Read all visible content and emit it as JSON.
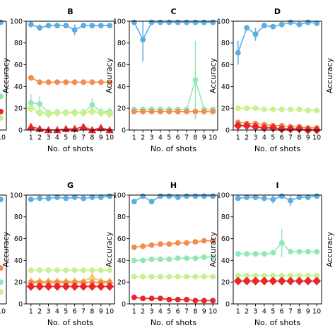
{
  "chart_data": [
    {
      "type": "line",
      "panel": "B",
      "xlabel": "No. of shots",
      "ylabel": "Accuracy",
      "ylim": [
        0,
        100
      ],
      "yticks": [
        0,
        20,
        40,
        60,
        80,
        100
      ],
      "x": [
        1,
        2,
        3,
        4,
        5,
        6,
        7,
        8,
        9,
        10
      ],
      "xtick_labels": [
        "1",
        "2",
        "3",
        "4",
        "5",
        "6",
        "7",
        "8",
        "9",
        "10"
      ],
      "series": [
        {
          "color": "#5dade2",
          "marker": "circle",
          "values": [
            97,
            94,
            96,
            96,
            96,
            92,
            96,
            96,
            96,
            96
          ],
          "error": [
            0,
            3,
            0,
            0,
            0,
            5,
            0,
            0,
            0,
            0
          ]
        },
        {
          "color": "#f28c4f",
          "marker": "circle",
          "values": [
            48,
            44,
            44,
            44,
            44,
            44,
            44,
            44,
            44,
            44
          ],
          "error": [
            2,
            0,
            0,
            0,
            0,
            0,
            0,
            0,
            0,
            0
          ]
        },
        {
          "color": "#92e8b4",
          "marker": "circle",
          "values": [
            25,
            24,
            16,
            16,
            16,
            16,
            16,
            23,
            17,
            17
          ],
          "error": [
            8,
            7,
            3,
            0,
            0,
            0,
            0,
            6,
            4,
            4
          ]
        },
        {
          "color": "#c8f08f",
          "marker": "diamond",
          "values": [
            20,
            16,
            15,
            16,
            16,
            16,
            16,
            17,
            16,
            15
          ],
          "error": [
            0,
            0,
            0,
            0,
            0,
            0,
            0,
            0,
            0,
            0
          ]
        },
        {
          "color": "#e8262b",
          "marker": "triangle",
          "values": [
            3,
            1,
            0,
            0,
            1,
            1,
            3,
            0,
            2,
            0
          ],
          "error": [
            0,
            0,
            0,
            0,
            0,
            0,
            0,
            0,
            0,
            0
          ]
        }
      ]
    },
    {
      "type": "line",
      "panel": "C",
      "xlabel": "No. of shots",
      "ylabel": "Accuracy",
      "ylim": [
        0,
        100
      ],
      "yticks": [
        0,
        20,
        40,
        60,
        80,
        100
      ],
      "x": [
        1,
        2,
        3,
        4,
        5,
        6,
        7,
        8,
        9,
        10
      ],
      "xtick_labels": [
        "1",
        "2",
        "3",
        "4",
        "5",
        "6",
        "7",
        "8",
        "9",
        "10"
      ],
      "series": [
        {
          "color": "#5dade2",
          "marker": "circle",
          "values": [
            99,
            83,
            99,
            99,
            99,
            99,
            99,
            99,
            99,
            99
          ],
          "error": [
            0,
            20,
            0,
            0,
            0,
            0,
            0,
            0,
            0,
            0
          ]
        },
        {
          "color": "#92e8b4",
          "marker": "circle",
          "values": [
            19,
            19,
            19,
            19,
            19,
            19,
            19,
            46,
            19,
            19
          ],
          "error": [
            0,
            0,
            0,
            0,
            0,
            0,
            0,
            36,
            0,
            0
          ]
        },
        {
          "color": "#f28c4f",
          "marker": "circle",
          "values": [
            17,
            17,
            17,
            17,
            17,
            17,
            17,
            17,
            17,
            17
          ],
          "error": [
            0,
            0,
            0,
            0,
            0,
            0,
            0,
            0,
            0,
            0
          ]
        }
      ]
    },
    {
      "type": "line",
      "panel": "D",
      "xlabel": "No. of shots",
      "ylabel": "Accuracy",
      "ylim": [
        0,
        100
      ],
      "yticks": [
        0,
        20,
        40,
        60,
        80,
        100
      ],
      "x": [
        1,
        2,
        3,
        4,
        5,
        6,
        7,
        8,
        9,
        10
      ],
      "xtick_labels": [
        "1",
        "2",
        "3",
        "4",
        "5",
        "6",
        "7",
        "8",
        "9",
        "10"
      ],
      "series": [
        {
          "color": "#5dade2",
          "marker": "circle",
          "values": [
            71,
            94,
            88,
            96,
            95,
            97,
            99,
            97,
            99,
            98
          ],
          "error": [
            11,
            0,
            6,
            0,
            0,
            0,
            0,
            0,
            0,
            0
          ]
        },
        {
          "color": "#c8f08f",
          "marker": "circle",
          "values": [
            20,
            20,
            20,
            19,
            19,
            19,
            19,
            19,
            18,
            18
          ],
          "error": [
            0,
            0,
            0,
            0,
            0,
            0,
            0,
            0,
            0,
            0
          ]
        },
        {
          "color": "#f28c4f",
          "marker": "circle",
          "values": [
            7,
            6,
            6,
            5,
            4,
            4,
            3,
            3,
            2,
            2
          ],
          "error": [
            0,
            0,
            0,
            0,
            0,
            0,
            0,
            0,
            0,
            0
          ]
        },
        {
          "color": "#e8262b",
          "marker": "diamond",
          "values": [
            4,
            4,
            3,
            2,
            2,
            1,
            1,
            1,
            0,
            0
          ],
          "error": [
            0,
            0,
            0,
            0,
            0,
            0,
            0,
            0,
            0,
            0
          ]
        }
      ]
    },
    {
      "type": "line",
      "panel": "G",
      "xlabel": "No. of shots",
      "ylabel": "Accuracy",
      "ylim": [
        0,
        100
      ],
      "yticks": [
        0,
        20,
        40,
        60,
        80,
        100
      ],
      "x": [
        1,
        2,
        3,
        4,
        5,
        6,
        7,
        8,
        9,
        10
      ],
      "xtick_labels": [
        "1",
        "2",
        "3",
        "4",
        "5",
        "6",
        "7",
        "8",
        "9",
        "10"
      ],
      "series": [
        {
          "color": "#5dade2",
          "marker": "circle",
          "values": [
            96,
            97,
            97,
            98,
            97,
            98,
            97,
            98,
            98,
            99
          ],
          "error": [
            0,
            0,
            0,
            0,
            0,
            0,
            0,
            0,
            0,
            0
          ]
        },
        {
          "color": "#c8f08f",
          "marker": "circle",
          "values": [
            31,
            31,
            31,
            31,
            31,
            31,
            31,
            31,
            31,
            31
          ],
          "error": [
            0,
            0,
            0,
            0,
            0,
            0,
            0,
            0,
            0,
            0
          ]
        },
        {
          "color": "#f0d070",
          "marker": "triangle",
          "values": [
            21,
            21,
            21,
            21,
            21,
            21,
            21,
            25,
            21,
            21
          ],
          "error": [
            0,
            0,
            0,
            0,
            0,
            0,
            0,
            0,
            0,
            0
          ]
        },
        {
          "color": "#f28c4f",
          "marker": "circle",
          "values": [
            20,
            20,
            20,
            20,
            20,
            20,
            20,
            20,
            20,
            20
          ],
          "error": [
            0,
            0,
            0,
            0,
            0,
            0,
            0,
            0,
            0,
            0
          ]
        },
        {
          "color": "#e8262b",
          "marker": "diamond",
          "values": [
            16,
            16,
            16,
            16,
            16,
            16,
            16,
            16,
            16,
            16
          ],
          "error": [
            0,
            0,
            0,
            0,
            0,
            0,
            0,
            0,
            0,
            0
          ]
        }
      ]
    },
    {
      "type": "line",
      "panel": "H",
      "xlabel": "No. of shots",
      "ylabel": "Accuracy",
      "ylim": [
        0,
        100
      ],
      "yticks": [
        0,
        20,
        40,
        60,
        80,
        100
      ],
      "x": [
        1,
        2,
        3,
        4,
        5,
        6,
        7,
        8,
        9,
        10
      ],
      "xtick_labels": [
        "1",
        "2",
        "3",
        "4",
        "5",
        "6",
        "7",
        "8",
        "9",
        "10"
      ],
      "series": [
        {
          "color": "#5dade2",
          "marker": "circle",
          "values": [
            94,
            99,
            94,
            99,
            99,
            98,
            99,
            99,
            99,
            99
          ],
          "error": [
            0,
            0,
            0,
            0,
            0,
            0,
            0,
            0,
            0,
            0
          ]
        },
        {
          "color": "#f28c4f",
          "marker": "circle",
          "values": [
            52,
            53,
            54,
            55,
            55,
            56,
            56,
            57,
            58,
            58
          ],
          "error": [
            0,
            0,
            0,
            0,
            0,
            0,
            0,
            0,
            0,
            0
          ]
        },
        {
          "color": "#92e8b4",
          "marker": "circle",
          "values": [
            40,
            40,
            41,
            41,
            41,
            42,
            42,
            42,
            43,
            43
          ],
          "error": [
            0,
            0,
            0,
            0,
            0,
            0,
            0,
            0,
            0,
            0
          ]
        },
        {
          "color": "#c8f08f",
          "marker": "circle",
          "values": [
            25,
            25,
            25,
            25,
            25,
            25,
            25,
            25,
            25,
            25
          ],
          "error": [
            0,
            0,
            0,
            0,
            0,
            0,
            0,
            0,
            0,
            0
          ]
        },
        {
          "color": "#e8262b",
          "marker": "circle",
          "values": [
            6,
            5,
            5,
            5,
            4,
            4,
            4,
            3,
            3,
            3
          ],
          "error": [
            0,
            0,
            0,
            0,
            0,
            0,
            0,
            0,
            0,
            0
          ]
        }
      ]
    },
    {
      "type": "line",
      "panel": "I",
      "xlabel": "No. of shots",
      "ylabel": "Accuracy",
      "ylim": [
        0,
        100
      ],
      "yticks": [
        0,
        20,
        40,
        60,
        80,
        100
      ],
      "x": [
        1,
        2,
        3,
        4,
        5,
        6,
        7,
        8,
        9,
        10
      ],
      "xtick_labels": [
        "1",
        "2",
        "3",
        "4",
        "5",
        "6",
        "7",
        "8",
        "9",
        "10"
      ],
      "series": [
        {
          "color": "#5dade2",
          "marker": "circle",
          "values": [
            97,
            98,
            98,
            97,
            96,
            99,
            95,
            98,
            98,
            99
          ],
          "error": [
            0,
            0,
            0,
            0,
            4,
            0,
            5,
            0,
            0,
            0
          ]
        },
        {
          "color": "#92e8b4",
          "marker": "circle",
          "values": [
            46,
            46,
            46,
            46,
            47,
            56,
            48,
            48,
            48,
            48
          ],
          "error": [
            0,
            0,
            0,
            0,
            0,
            13,
            0,
            0,
            0,
            0
          ]
        },
        {
          "color": "#c8f08f",
          "marker": "circle",
          "values": [
            26,
            26,
            26,
            26,
            26,
            26,
            26,
            26,
            26,
            26
          ],
          "error": [
            0,
            0,
            0,
            0,
            0,
            0,
            0,
            0,
            0,
            0
          ]
        },
        {
          "color": "#e8262b",
          "marker": "diamond",
          "values": [
            21,
            21,
            21,
            21,
            21,
            21,
            21,
            21,
            21,
            21
          ],
          "error": [
            0,
            0,
            0,
            0,
            0,
            0,
            0,
            0,
            0,
            0
          ]
        }
      ]
    }
  ],
  "edge_fragments": {
    "left_top": {
      "values": [
        99,
        31,
        17,
        11
      ],
      "colors": [
        "#5dade2",
        "#92e8b4",
        "#e8262b",
        "#c8f08f"
      ],
      "tick": "10"
    },
    "left_bottom": {
      "values": [
        96,
        33,
        20,
        11
      ],
      "colors": [
        "#5dade2",
        "#f28c4f",
        "#92e8b4",
        "#c8f08f"
      ],
      "tick": "10"
    },
    "right_top": {
      "ylabel": "Accuracy"
    },
    "right_bottom": {
      "ylabel": "Accuracy"
    }
  }
}
